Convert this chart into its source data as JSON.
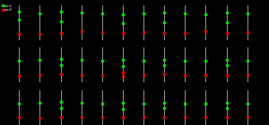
{
  "nrows": 3,
  "ncols": 12,
  "background_color": "#000000",
  "line_color": "#c0c0c0",
  "green_color": "#00dd00",
  "red_color": "#dd0000",
  "fig_width": 3.0,
  "fig_height": 1.4,
  "dpi": 100,
  "ylim": [
    0.0,
    1.0
  ],
  "series_data": [
    [
      {
        "green": [
          0.82,
          0.58
        ],
        "red": [
          0.18
        ]
      },
      {
        "green": [
          0.75
        ],
        "red": [
          0.17
        ]
      },
      {
        "green": [
          0.8,
          0.52
        ],
        "red": [
          0.21
        ]
      },
      {
        "green": [
          0.78
        ],
        "red": [
          0.25
        ]
      },
      {
        "green": [
          0.76
        ],
        "red": [
          0.22
        ]
      },
      {
        "green": [
          0.74,
          0.48
        ],
        "red": [
          0.2
        ]
      },
      {
        "green": [
          0.77
        ],
        "red": [
          0.23
        ]
      },
      {
        "green": [
          0.79,
          0.5
        ],
        "red": [
          0.19
        ]
      },
      {
        "green": [
          0.75
        ],
        "red": [
          0.21
        ]
      },
      {
        "green": [
          0.73
        ],
        "red": [
          0.24
        ]
      },
      {
        "green": [
          0.78,
          0.51
        ],
        "red": [
          0.2
        ]
      },
      {
        "green": [
          0.76
        ],
        "red": [
          0.22
        ]
      }
    ],
    [
      {
        "green": [
          0.62
        ],
        "red": [
          0.2
        ]
      },
      {
        "green": [
          0.65
        ],
        "red": [
          0.21
        ]
      },
      {
        "green": [
          0.68,
          0.5
        ],
        "red": [
          0.24
        ]
      },
      {
        "green": [
          0.64
        ],
        "red": [
          0.22
        ]
      },
      {
        "green": [
          0.62
        ],
        "red": [
          0.21
        ]
      },
      {
        "green": [
          0.65,
          0.48
        ],
        "red": [
          0.3,
          0.2
        ]
      },
      {
        "green": [
          0.63
        ],
        "red": [
          0.22
        ]
      },
      {
        "green": [
          0.66,
          0.49
        ],
        "red": [
          0.23
        ]
      },
      {
        "green": [
          0.62
        ],
        "red": [
          0.21
        ]
      },
      {
        "green": [
          0.61
        ],
        "red": [
          0.22
        ]
      },
      {
        "green": [
          0.64,
          0.49
        ],
        "red": [
          0.21
        ]
      },
      {
        "green": [
          0.62
        ],
        "red": [
          0.22
        ]
      }
    ],
    [
      {
        "green": [
          0.6
        ],
        "red": [
          0.22
        ]
      },
      {
        "green": [
          0.63
        ],
        "red": [
          0.21
        ]
      },
      {
        "green": [
          0.66,
          0.48
        ],
        "red": [
          0.23
        ]
      },
      {
        "green": [
          0.64
        ],
        "red": [
          0.22
        ]
      },
      {
        "green": [
          0.62
        ],
        "red": [
          0.23
        ]
      },
      {
        "green": [
          0.65,
          0.47
        ],
        "red": [
          0.24
        ]
      },
      {
        "green": [
          0.62
        ],
        "red": [
          0.22
        ]
      },
      {
        "green": [
          0.64,
          0.48
        ],
        "red": [
          0.23
        ]
      },
      {
        "green": [
          0.62
        ],
        "red": [
          0.22
        ]
      },
      {
        "green": [
          0.61
        ],
        "red": [
          0.23
        ]
      },
      {
        "green": [
          0.63,
          0.48
        ],
        "red": [
          0.22
        ]
      },
      {
        "green": [
          0.62
        ],
        "red": [
          0.23
        ]
      }
    ]
  ],
  "legend_green_label": "run1",
  "legend_red_label": "run2"
}
